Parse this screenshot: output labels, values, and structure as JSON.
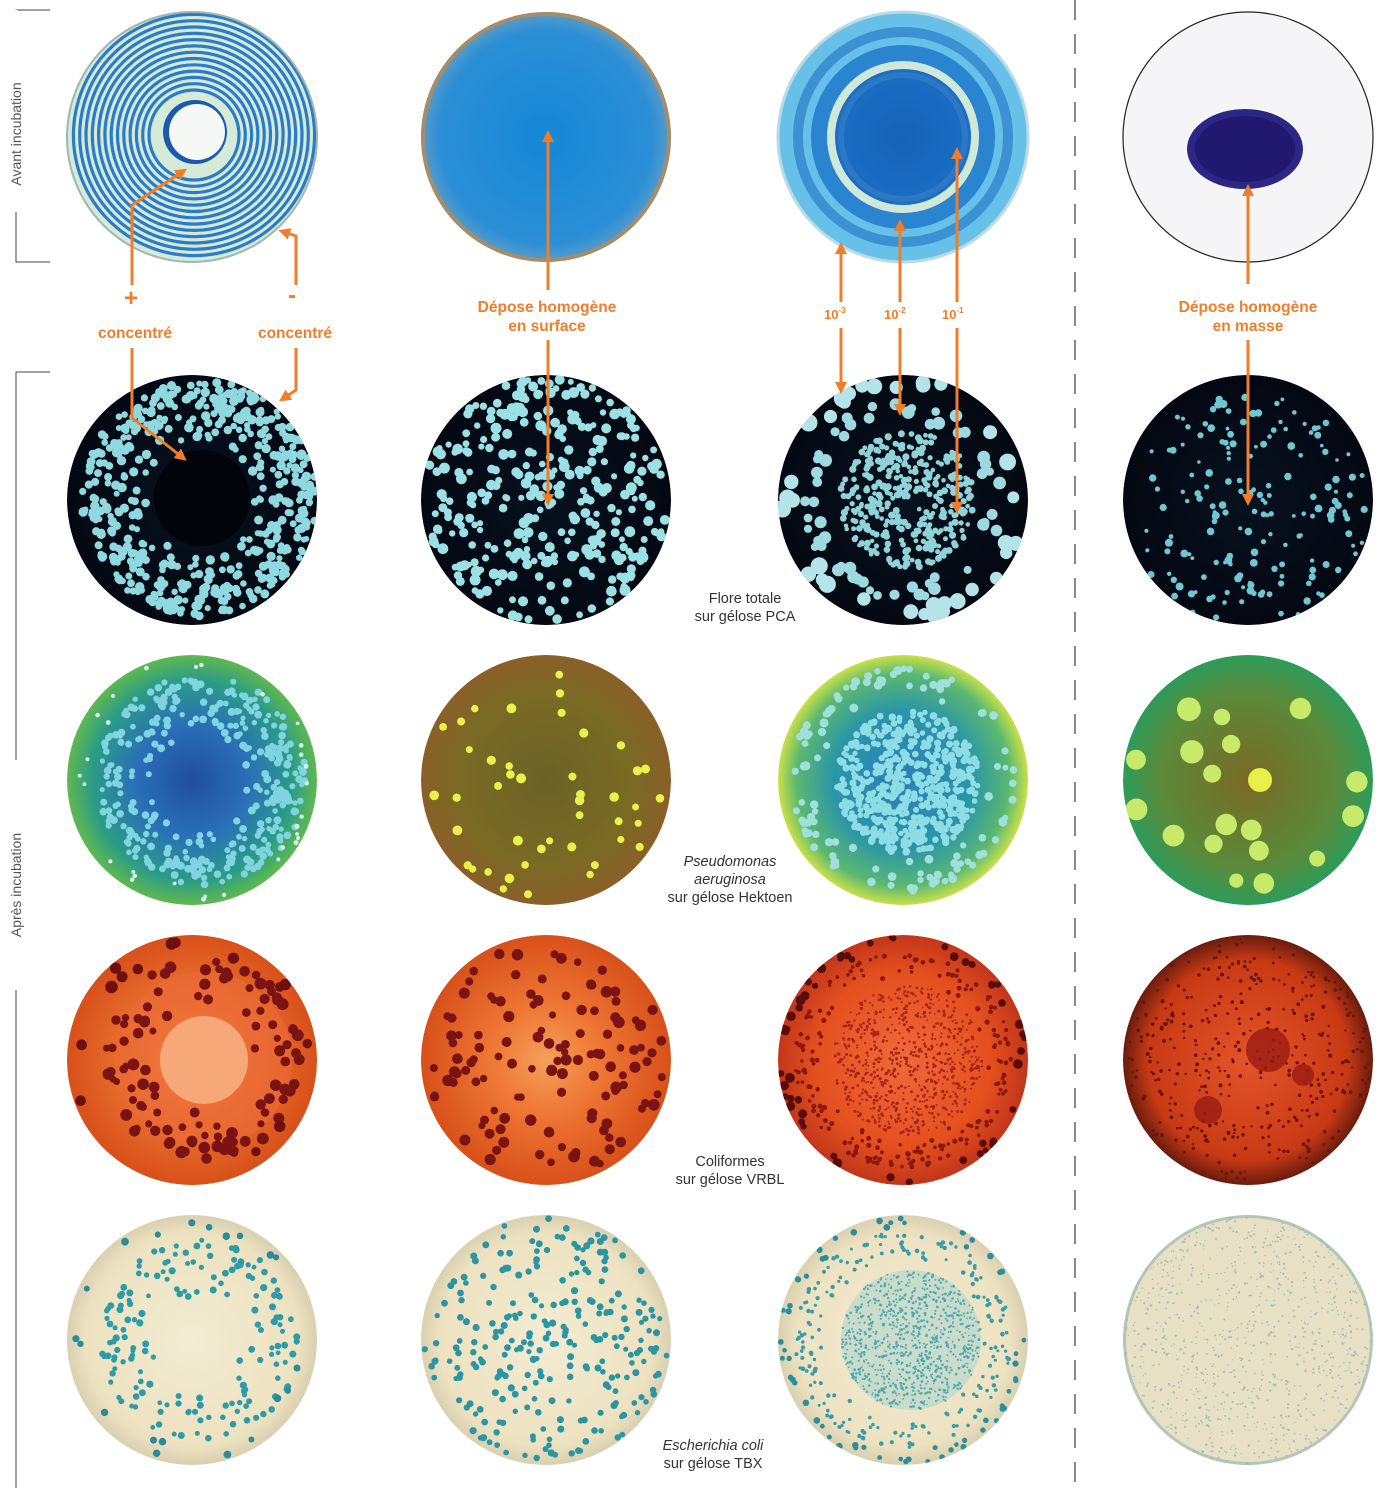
{
  "side_labels": {
    "before": "Avant incubation",
    "after": "Après incubation"
  },
  "top_labels": {
    "plus_sign": "+",
    "minus_sign": "-",
    "concentrated_left": "concentré",
    "concentrated_right": "concentré",
    "surface_line1": "Dépose homogène",
    "surface_line2": "en surface",
    "mass_line1": "Dépose homogène",
    "mass_line2": "en masse",
    "dilutions": [
      {
        "base": "10",
        "exp": "-3"
      },
      {
        "base": "10",
        "exp": "-2"
      },
      {
        "base": "10",
        "exp": "-1"
      }
    ]
  },
  "captions": {
    "pca_line1": "Flore totale",
    "pca_line2": "sur gélose PCA",
    "hektoen_line1": "Pseudomonas",
    "hektoen_line2": "aeruginosa",
    "hektoen_line3": "sur gélose Hektoen",
    "vrbl_line1": "Coliformes",
    "vrbl_line2": "sur gélose VRBL",
    "tbx_line1": "Escherichia coli",
    "tbx_line2": "sur gélose TBX"
  },
  "colors": {
    "accent": "#f07d2a"
  },
  "plates": {
    "before": [
      "spiral-concentric-blue",
      "surface-uniform-blue",
      "rings-dilution-blue",
      "mass-drop-purple"
    ],
    "pca": [
      "colonies-spiral",
      "colonies-surface",
      "colonies-rings",
      "colonies-mass"
    ],
    "hektoen": [
      "colonies-spiral",
      "colonies-surface",
      "colonies-rings",
      "colonies-mass"
    ],
    "vrbl": [
      "colonies-spiral",
      "colonies-surface",
      "colonies-rings",
      "colonies-mass"
    ],
    "tbx": [
      "colonies-spiral",
      "colonies-surface",
      "colonies-rings",
      "colonies-mass"
    ]
  }
}
